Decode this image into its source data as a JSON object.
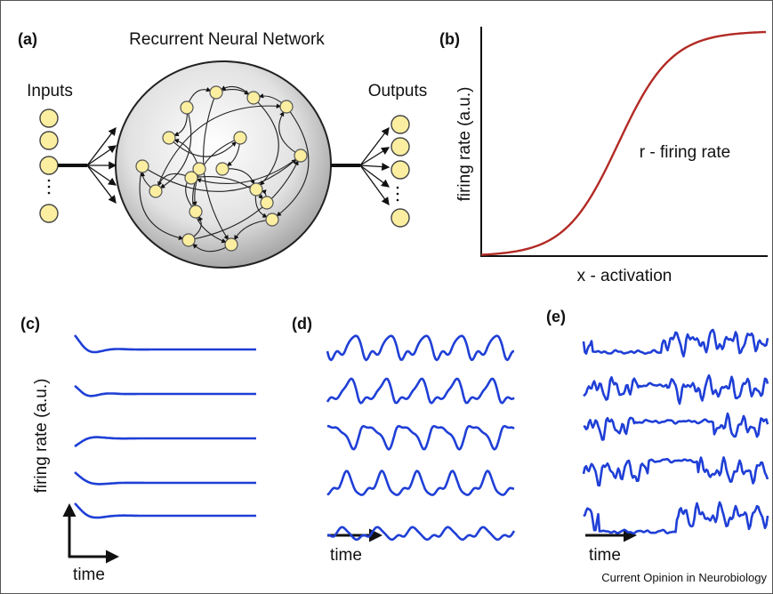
{
  "panels": {
    "a": {
      "label": "(a)",
      "title": "Recurrent Neural Network",
      "inputs": "Inputs",
      "outputs": "Outputs"
    },
    "b": {
      "label": "(b)",
      "y_label": "firing rate (a.u.)",
      "curve_label": "r - firing rate",
      "x_label": "x - activation"
    },
    "c": {
      "label": "(c)",
      "y_label": "firing rate (a.u.)",
      "x_label": "time"
    },
    "d": {
      "label": "(d)",
      "x_label": "time"
    },
    "e": {
      "label": "(e)",
      "x_label": "time"
    }
  },
  "footer": "Current Opinion in Neurobiology"
}
